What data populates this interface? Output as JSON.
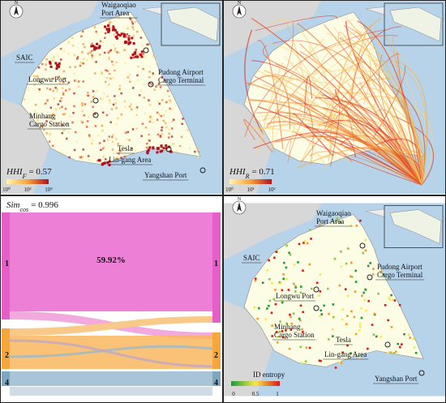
{
  "compass": "N",
  "labels": [
    {
      "lines": [
        "Waigaoqiao",
        "Port Area"
      ]
    },
    {
      "lines": [
        "SAIC"
      ]
    },
    {
      "lines": [
        "Pudong Airport",
        "Cargo Terminal"
      ]
    },
    {
      "lines": [
        "Longwu Port"
      ]
    },
    {
      "lines": [
        "Minhang",
        "Cargo Station"
      ]
    },
    {
      "lines": [
        "Tesla"
      ]
    },
    {
      "lines": [
        "Lin-gang Area"
      ]
    },
    {
      "lines": [
        "Yangshan Port"
      ]
    }
  ],
  "panel_a": {
    "index": {
      "symbol": "HHI",
      "subscript": "F",
      "value": "= 0.57"
    },
    "legend_ticks": [
      "10⁰",
      "10²",
      "10⁴"
    ]
  },
  "panel_b": {
    "index": {
      "symbol": "HHI",
      "subscript": "R",
      "value": "= 0.71"
    },
    "legend_ticks": [
      "10⁰",
      "10¹",
      "10²"
    ]
  },
  "panel_c": {
    "index": {
      "symbol": "Sim",
      "subscript": "cos",
      "value": "= 0.996"
    },
    "share": "59.92%",
    "left_labels": [
      "1",
      "2",
      "4"
    ],
    "right_labels": [
      "1",
      "2",
      "4"
    ]
  },
  "panel_d": {
    "legend_title": "ID entropy",
    "legend_ticks": [
      "0",
      "0.5",
      "1"
    ]
  }
}
